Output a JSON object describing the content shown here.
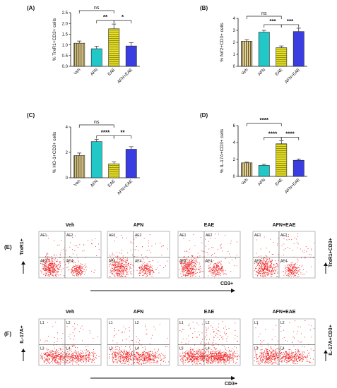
{
  "colors": {
    "veh": "#6b5a2b",
    "veh_stripe": "#e8d8a0",
    "afn": "#22c7c7",
    "eae": "#e8e22a",
    "eae_stripe": "#fffbe0",
    "afn_eae": "#3a3ee0",
    "dots": "#ee1a1a",
    "axis": "#111111"
  },
  "chart_data": [
    {
      "panel": "(A)",
      "type": "bar",
      "categories": [
        "Veh",
        "AFN",
        "EAE",
        "AFN+EAE"
      ],
      "values": [
        1.08,
        0.82,
        1.75,
        0.95
      ],
      "errors": [
        0.1,
        0.12,
        0.22,
        0.15
      ],
      "ylabel": "% TrxR1+CD3+ cells",
      "ylim": [
        0,
        2.5
      ],
      "yticks": [
        "0.0",
        "0.5",
        "1.0",
        "1.5",
        "2.0",
        "2.5"
      ],
      "significance": [
        {
          "label": "ns",
          "from": 0,
          "to": 2
        },
        {
          "label": "**",
          "from": 1,
          "to": 2
        },
        {
          "label": "*",
          "from": 2,
          "to": 3
        }
      ]
    },
    {
      "panel": "(B)",
      "type": "bar",
      "categories": [
        "Veh",
        "AFN",
        "EAE",
        "AFN+EAE"
      ],
      "values": [
        2.1,
        2.85,
        1.55,
        2.9
      ],
      "errors": [
        0.12,
        0.15,
        0.15,
        0.28
      ],
      "ylabel": "% Nrf2+CD3+ cells",
      "ylim": [
        0,
        4
      ],
      "yticks": [
        "0",
        "1",
        "2",
        "3",
        "4"
      ],
      "significance": [
        {
          "label": "ns",
          "from": 0,
          "to": 2
        },
        {
          "label": "***",
          "from": 1,
          "to": 2
        },
        {
          "label": "***",
          "from": 2,
          "to": 3
        }
      ]
    },
    {
      "panel": "(C)",
      "type": "bar",
      "categories": [
        "Veh",
        "AFN",
        "EAE",
        "AFN+EAE"
      ],
      "values": [
        1.75,
        2.85,
        1.1,
        2.25
      ],
      "errors": [
        0.2,
        0.18,
        0.15,
        0.2
      ],
      "ylabel": "% HO-1+CD3+ cells",
      "ylim": [
        0,
        4
      ],
      "yticks": [
        "0",
        "2",
        "4"
      ],
      "significance": [
        {
          "label": "ns",
          "from": 0,
          "to": 2
        },
        {
          "label": "****",
          "from": 1,
          "to": 2
        },
        {
          "label": "**",
          "from": 2,
          "to": 3
        }
      ]
    },
    {
      "panel": "(D)",
      "type": "bar",
      "categories": [
        "Veh",
        "AFN",
        "EAE",
        "AFN+EAE"
      ],
      "values": [
        1.6,
        1.3,
        3.85,
        1.9
      ],
      "errors": [
        0.08,
        0.12,
        0.35,
        0.15
      ],
      "ylabel": "% IL-17A+CD3+ cells",
      "ylim": [
        0,
        6
      ],
      "yticks": [
        "0",
        "2",
        "4",
        "6"
      ],
      "significance": [
        {
          "label": "****",
          "from": 0,
          "to": 2
        },
        {
          "label": "****",
          "from": 1,
          "to": 2
        },
        {
          "label": "****",
          "from": 2,
          "to": 3
        }
      ]
    }
  ],
  "flow_panels": [
    {
      "panel": "(E)",
      "titles": [
        "Veh",
        "AFN",
        "EAE",
        "AFN+EAE"
      ],
      "quadrants": [
        "AE1",
        "AE2",
        "AE3",
        "AE4"
      ],
      "ylabel": "TrxR1+",
      "xlabel": "CD3+",
      "side_label": "TrxR1+CD3+"
    },
    {
      "panel": "(F)",
      "titles": [
        "Veh",
        "AFN",
        "EAE",
        "AFN+EAE"
      ],
      "quadrants": [
        "L1",
        "L2",
        "L3",
        "L4"
      ],
      "ylabel": "IL-17A+",
      "xlabel": "CD3+",
      "side_label": "IL-17A+CD3+"
    }
  ]
}
